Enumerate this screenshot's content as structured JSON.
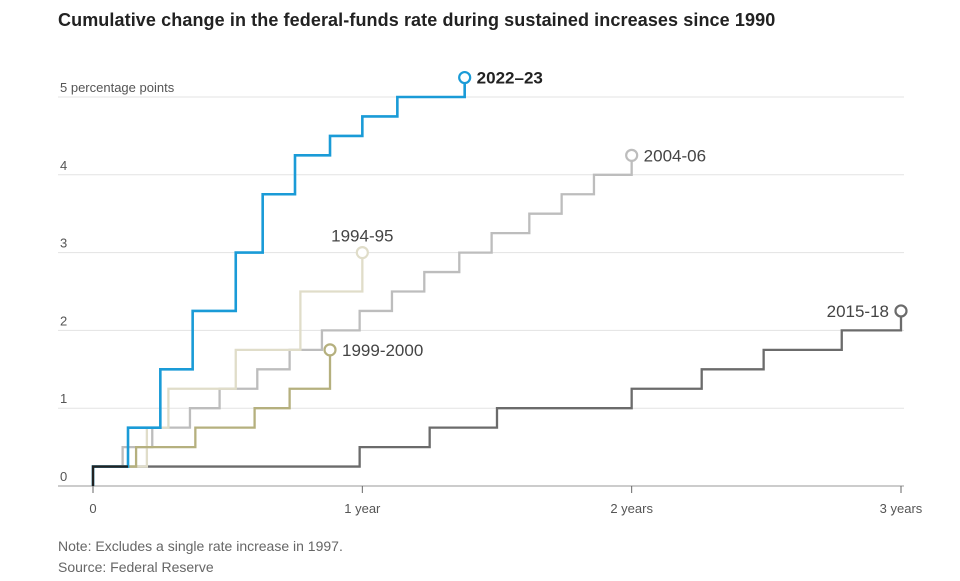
{
  "title": "Cumulative change in the federal-funds rate during sustained increases since 1990",
  "notes": [
    "Note: Excludes a single rate increase in 1997.",
    "Source: Federal Reserve"
  ],
  "chart_data": {
    "type": "line",
    "step": true,
    "title": "Cumulative change in the federal-funds rate during sustained increases since 1990",
    "xlabel": "",
    "ylabel": "percentage points",
    "xlim": [
      0,
      3
    ],
    "ylim": [
      0,
      5
    ],
    "y_ticks": [
      {
        "v": 0,
        "label": "0"
      },
      {
        "v": 1,
        "label": "1"
      },
      {
        "v": 2,
        "label": "2"
      },
      {
        "v": 3,
        "label": "3"
      },
      {
        "v": 4,
        "label": "4"
      },
      {
        "v": 5,
        "label": "5 percentage points"
      }
    ],
    "x_ticks": [
      {
        "v": 0,
        "label": "0"
      },
      {
        "v": 1,
        "label": "1 year"
      },
      {
        "v": 2,
        "label": "2 years"
      },
      {
        "v": 3,
        "label": "3 years"
      }
    ],
    "series": [
      {
        "name": "2015-18",
        "color": "#6b6b6b",
        "bold": false,
        "label_side": "left",
        "x": [
          0,
          0.99,
          1.25,
          1.5,
          2.0,
          2.26,
          2.49,
          2.78,
          3.0
        ],
        "y": [
          0.25,
          0.5,
          0.75,
          1.0,
          1.25,
          1.5,
          1.75,
          2.0,
          2.25
        ]
      },
      {
        "name": "2004-06",
        "color": "#bdbdbd",
        "bold": false,
        "label_side": "right",
        "x": [
          0,
          0.11,
          0.22,
          0.36,
          0.47,
          0.61,
          0.73,
          0.85,
          0.99,
          1.11,
          1.23,
          1.36,
          1.48,
          1.62,
          1.74,
          1.86,
          2.0
        ],
        "y": [
          0.25,
          0.5,
          0.75,
          1.0,
          1.25,
          1.5,
          1.75,
          2.0,
          2.25,
          2.5,
          2.75,
          3.0,
          3.25,
          3.5,
          3.75,
          4.0,
          4.25
        ]
      },
      {
        "name": "1994-95",
        "color": "#e0ddc9",
        "bold": false,
        "label_side": "above",
        "x": [
          0,
          0.2,
          0.28,
          0.53,
          0.77,
          1.0
        ],
        "y": [
          0.25,
          0.75,
          1.25,
          1.75,
          2.5,
          3.0
        ]
      },
      {
        "name": "1999-2000",
        "color": "#b5b07e",
        "bold": false,
        "label_side": "right",
        "x": [
          0,
          0.16,
          0.38,
          0.6,
          0.73,
          0.88
        ],
        "y": [
          0.25,
          0.5,
          0.75,
          1.0,
          1.25,
          1.75
        ]
      },
      {
        "name": "2022–23",
        "color": "#1a9bd7",
        "bold": true,
        "label_side": "right",
        "x": [
          0,
          0.13,
          0.25,
          0.37,
          0.53,
          0.63,
          0.75,
          0.88,
          1.0,
          1.13,
          1.38
        ],
        "y": [
          0.25,
          0.75,
          1.5,
          2.25,
          3.0,
          3.75,
          4.25,
          4.5,
          4.75,
          5.0,
          5.25
        ]
      }
    ]
  }
}
